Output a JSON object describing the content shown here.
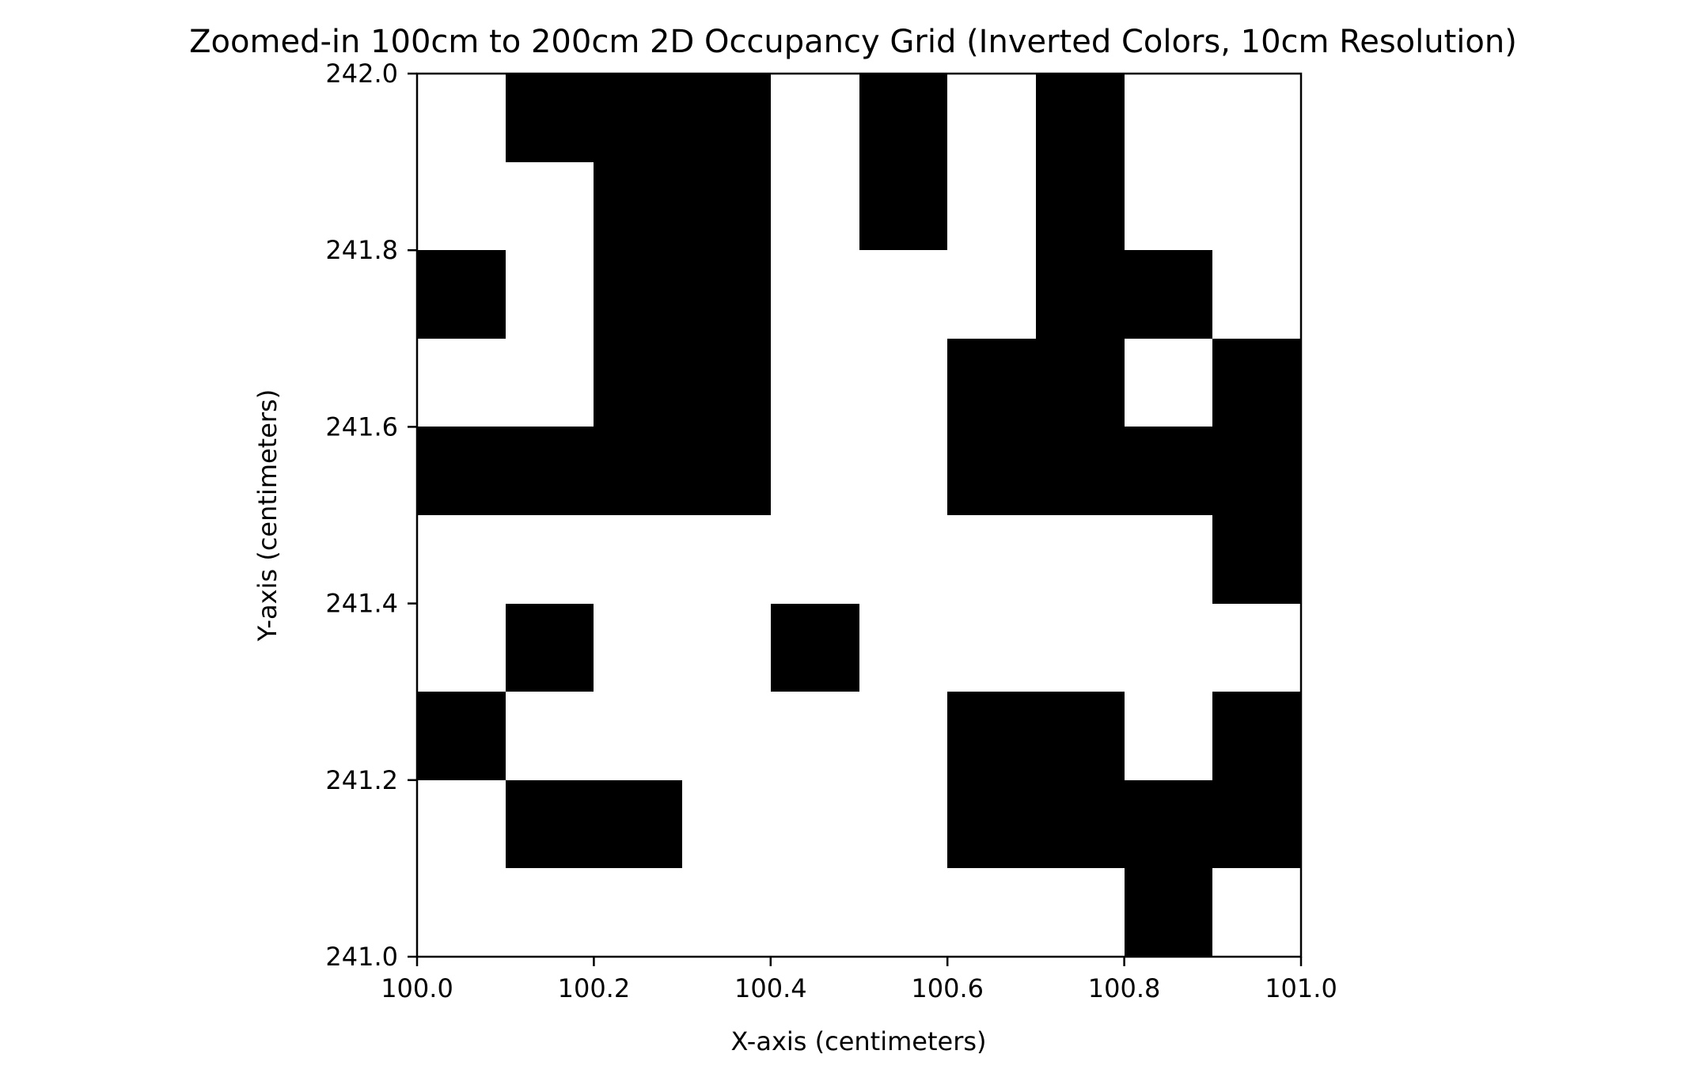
{
  "chart_data": {
    "type": "heatmap",
    "title": "Zoomed-in 100cm to 200cm 2D Occupancy Grid (Inverted Colors, 10cm Resolution)",
    "xlabel": "X-axis (centimeters)",
    "ylabel": "Y-axis (centimeters)",
    "xlim": [
      100.0,
      101.0
    ],
    "ylim": [
      241.0,
      242.0
    ],
    "x_ticks": [
      100.0,
      100.2,
      100.4,
      100.6,
      100.8,
      101.0
    ],
    "x_tick_labels": [
      "100.0",
      "100.2",
      "100.4",
      "100.6",
      "100.8",
      "101.0"
    ],
    "y_ticks": [
      241.0,
      241.2,
      241.4,
      241.6,
      241.8,
      242.0
    ],
    "y_tick_labels": [
      "241.0",
      "241.2",
      "241.4",
      "241.6",
      "241.8",
      "242.0"
    ],
    "cell_size": 0.1,
    "grid": false,
    "colors": {
      "occupied": "#000000",
      "free": "#ffffff"
    },
    "rows_top_to_bottom": [
      [
        0,
        1,
        1,
        1,
        0,
        1,
        0,
        1,
        0,
        0
      ],
      [
        0,
        0,
        1,
        1,
        0,
        1,
        0,
        1,
        0,
        0
      ],
      [
        1,
        0,
        1,
        1,
        0,
        0,
        0,
        1,
        1,
        0
      ],
      [
        0,
        0,
        1,
        1,
        0,
        0,
        1,
        1,
        0,
        1
      ],
      [
        1,
        1,
        1,
        1,
        0,
        0,
        1,
        1,
        1,
        1
      ],
      [
        0,
        0,
        0,
        0,
        0,
        0,
        0,
        0,
        0,
        1
      ],
      [
        0,
        1,
        0,
        0,
        1,
        0,
        0,
        0,
        0,
        0
      ],
      [
        1,
        0,
        0,
        0,
        0,
        0,
        1,
        1,
        0,
        1
      ],
      [
        0,
        1,
        1,
        0,
        0,
        0,
        1,
        1,
        1,
        1
      ],
      [
        0,
        0,
        0,
        0,
        0,
        0,
        0,
        0,
        1,
        0
      ]
    ]
  }
}
